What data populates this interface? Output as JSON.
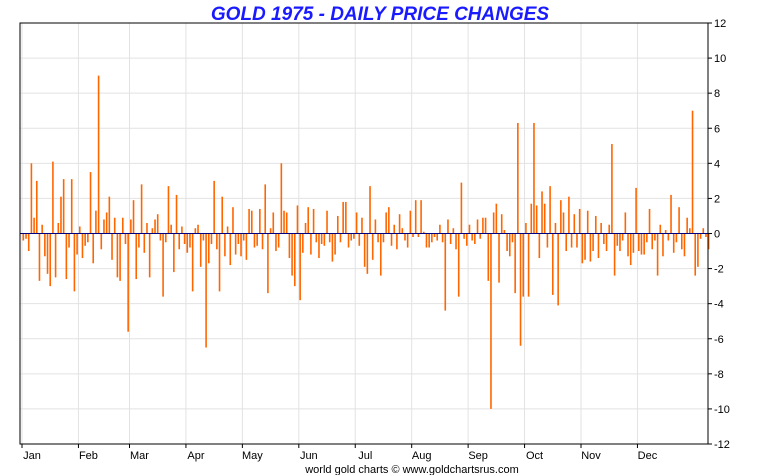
{
  "chart_data": {
    "type": "bar",
    "title": "GOLD 1975 - DAILY PRICE CHANGES",
    "footer": "world gold charts © www.goldchartsrus.com",
    "xlabel": "",
    "ylabel": "",
    "ylim": [
      -12,
      12
    ],
    "y_ticks": [
      {
        "value": 12,
        "label": "12"
      },
      {
        "value": 10,
        "label": "10"
      },
      {
        "value": 8,
        "label": "8"
      },
      {
        "value": 6,
        "label": "6"
      },
      {
        "value": 4,
        "label": "4"
      },
      {
        "value": 2,
        "label": "2"
      },
      {
        "value": 0,
        "label": "0"
      },
      {
        "value": -2,
        "label": "-2"
      },
      {
        "value": -4,
        "label": "-4"
      },
      {
        "value": -6,
        "label": "-6"
      },
      {
        "value": -8,
        "label": "-8"
      },
      {
        "value": -10,
        "label": "-10"
      },
      {
        "value": -12,
        "label": "-12"
      }
    ],
    "months": [
      {
        "label": "Jan",
        "start_index": 0
      },
      {
        "label": "Feb",
        "start_index": 21
      },
      {
        "label": "Mar",
        "start_index": 40
      },
      {
        "label": "Apr",
        "start_index": 61
      },
      {
        "label": "May",
        "start_index": 82
      },
      {
        "label": "Jun",
        "start_index": 103
      },
      {
        "label": "Jul",
        "start_index": 124
      },
      {
        "label": "Aug",
        "start_index": 145
      },
      {
        "label": "Sep",
        "start_index": 166
      },
      {
        "label": "Oct",
        "start_index": 187
      },
      {
        "label": "Nov",
        "start_index": 208
      },
      {
        "label": "Dec",
        "start_index": 229
      }
    ],
    "grid": true,
    "bar_color": "#ff6600",
    "zero_line_color": "#000080",
    "values": [
      -0.4,
      -0.3,
      -1.0,
      4.0,
      0.9,
      3.0,
      -2.7,
      0.5,
      -1.3,
      -2.3,
      -3.0,
      4.1,
      -2.5,
      0.6,
      2.1,
      3.1,
      -2.6,
      -0.8,
      3.1,
      -3.3,
      -1.2,
      0.4,
      -1.4,
      -0.7,
      -0.5,
      3.5,
      -1.7,
      1.3,
      9.0,
      -0.9,
      0.8,
      1.2,
      2.1,
      -1.5,
      0.9,
      -2.5,
      -2.7,
      0.9,
      -0.6,
      -5.6,
      0.8,
      1.9,
      -2.6,
      -0.8,
      2.8,
      -1.1,
      0.6,
      -2.5,
      0.3,
      0.8,
      1.1,
      -0.4,
      -3.6,
      -0.5,
      2.7,
      0.5,
      -2.2,
      2.2,
      -0.9,
      0.4,
      -0.6,
      -1.1,
      -0.8,
      -3.3,
      0.3,
      0.5,
      -1.9,
      -0.4,
      -6.5,
      -1.7,
      -0.6,
      3.0,
      -0.9,
      -3.3,
      2.1,
      -1.3,
      0.4,
      -1.8,
      1.5,
      -1.2,
      -0.6,
      -1.3,
      -0.4,
      -1.5,
      1.4,
      1.3,
      -0.8,
      -0.7,
      1.4,
      -0.9,
      2.8,
      -3.4,
      0.3,
      1.2,
      -1.0,
      -0.8,
      4.0,
      1.3,
      1.2,
      -1.4,
      -2.4,
      -3.0,
      1.6,
      -3.8,
      -1.1,
      0.6,
      1.5,
      -1.2,
      1.4,
      -0.5,
      -1.4,
      -0.6,
      -0.7,
      1.3,
      -0.5,
      -1.6,
      -1.2,
      1.0,
      -0.5,
      1.8,
      1.8,
      -0.8,
      -0.4,
      -0.3,
      1.2,
      -0.7,
      0.9,
      -1.9,
      -2.3,
      2.7,
      -1.5,
      0.8,
      -0.5,
      -2.4,
      -0.5,
      1.2,
      1.5,
      -0.7,
      0.5,
      -0.9,
      1.1,
      0.3,
      -0.4,
      -0.8,
      1.3,
      -0.2,
      1.9,
      -0.2,
      1.9,
      0.1,
      -0.8,
      -0.8,
      -0.5,
      -0.2,
      -0.4,
      0.5,
      -0.5,
      -4.4,
      0.8,
      -0.6,
      0.3,
      -0.9,
      -3.6,
      2.9,
      -0.3,
      -0.7,
      0.5,
      -0.4,
      -0.6,
      0.8,
      -0.3,
      0.9,
      0.9,
      -2.7,
      -10.0,
      1.2,
      1.7,
      -2.8,
      1.1,
      0.2,
      -1.0,
      -1.3,
      -0.5,
      -3.4,
      6.3,
      -6.4,
      -3.6,
      0.6,
      -3.6,
      1.7,
      6.3,
      1.6,
      -1.4,
      2.4,
      1.7,
      -0.8,
      2.7,
      -3.5,
      0.6,
      -4.1,
      1.9,
      1.2,
      -1.0,
      2.1,
      -0.8,
      1.1,
      -0.8,
      1.4,
      -1.7,
      -1.5,
      1.3,
      -1.6,
      -1.0,
      1.0,
      -1.4,
      0.6,
      -0.6,
      -1.0,
      0.5,
      5.1,
      -2.4,
      -0.7,
      -1.0,
      -0.4,
      1.2,
      -1.3,
      -1.8,
      -1.1,
      2.6,
      -1.0,
      -1.2,
      -1.2,
      -0.5,
      1.4,
      -0.9,
      -0.4,
      -2.4,
      0.5,
      -1.3,
      0.2,
      -0.4,
      2.2,
      -1.1,
      -0.5,
      1.5,
      -0.9,
      -1.3,
      0.9,
      0.3,
      7.0,
      -2.4,
      -1.9,
      -0.3,
      0.3,
      -0.2,
      -0.9
    ]
  }
}
